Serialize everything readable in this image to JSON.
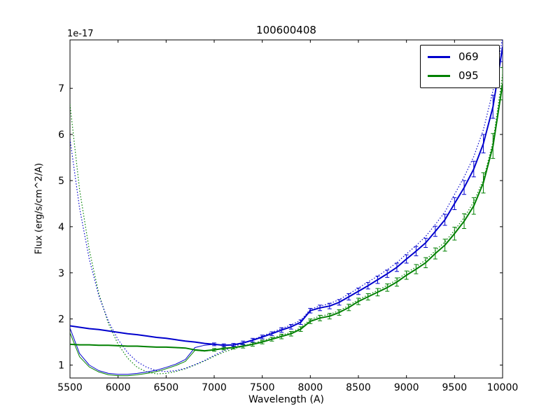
{
  "chart_data": {
    "type": "line",
    "title": "100600408",
    "xlabel": "Wavelength (A)",
    "ylabel": "Flux (erg/s/cm^2/A)",
    "offset_text": "1e-17",
    "xlim": [
      5500,
      10000
    ],
    "ylim": [
      0.72,
      8.05
    ],
    "xticks": [
      5500,
      6000,
      6500,
      7000,
      7500,
      8000,
      8500,
      9000,
      9500,
      10000
    ],
    "yticks": [
      1,
      2,
      3,
      4,
      5,
      6,
      7
    ],
    "grid": false,
    "legend_position": "upper right",
    "x": [
      5500,
      5600,
      5700,
      5800,
      5900,
      6000,
      6100,
      6200,
      6300,
      6400,
      6500,
      6600,
      6700,
      6800,
      6900,
      7000,
      7100,
      7200,
      7300,
      7400,
      7500,
      7600,
      7700,
      7800,
      7900,
      8000,
      8100,
      8200,
      8300,
      8400,
      8500,
      8600,
      8700,
      8800,
      8900,
      9000,
      9100,
      9200,
      9300,
      9400,
      9500,
      9600,
      9700,
      9800,
      9900,
      10000
    ],
    "series": [
      {
        "name": "095-model-dotted",
        "color": "#008000",
        "style": "dotted",
        "width": 1.2,
        "y": [
          6.65,
          4.8,
          3.5,
          2.55,
          1.9,
          1.45,
          1.15,
          0.95,
          0.85,
          0.81,
          0.82,
          0.86,
          0.92,
          1.0,
          1.09,
          1.19,
          1.28,
          1.35,
          1.41,
          1.47,
          1.53,
          1.59,
          1.65,
          1.71,
          1.81,
          1.99,
          2.06,
          2.1,
          2.18,
          2.29,
          2.42,
          2.52,
          2.62,
          2.73,
          2.85,
          3.0,
          3.13,
          3.28,
          3.48,
          3.67,
          3.92,
          4.2,
          4.54,
          5.02,
          5.85,
          7.3
        ]
      },
      {
        "name": "069-model-dotted",
        "color": "#0000cd",
        "style": "dotted",
        "width": 1.2,
        "y": [
          5.9,
          4.4,
          3.3,
          2.5,
          1.95,
          1.55,
          1.27,
          1.07,
          0.95,
          0.88,
          0.86,
          0.88,
          0.93,
          1.01,
          1.1,
          1.21,
          1.31,
          1.4,
          1.47,
          1.55,
          1.63,
          1.71,
          1.79,
          1.87,
          1.97,
          2.21,
          2.28,
          2.33,
          2.42,
          2.54,
          2.67,
          2.8,
          2.93,
          3.07,
          3.22,
          3.41,
          3.59,
          3.79,
          4.05,
          4.32,
          4.7,
          5.08,
          5.52,
          6.1,
          6.95,
          8.1
        ]
      },
      {
        "name": "095-spectrum-left",
        "color": "#008000",
        "style": "solid",
        "width": 1,
        "x": [
          5500,
          5600,
          5700,
          5800,
          5900,
          6000,
          6100,
          6200,
          6300,
          6400,
          6500,
          6600,
          6700,
          6800,
          6900,
          7000
        ],
        "y": [
          1.7,
          1.18,
          0.96,
          0.85,
          0.79,
          0.77,
          0.77,
          0.79,
          0.82,
          0.86,
          0.92,
          0.99,
          1.08,
          1.32,
          1.3,
          1.33
        ]
      },
      {
        "name": "069-spectrum-left",
        "color": "#0000cd",
        "style": "solid",
        "width": 1,
        "x": [
          5500,
          5600,
          5700,
          5800,
          5900,
          6000,
          6100,
          6200,
          6300,
          6400,
          6500,
          6600,
          6700,
          6800,
          6900,
          7000
        ],
        "y": [
          1.8,
          1.25,
          1.0,
          0.88,
          0.82,
          0.8,
          0.8,
          0.82,
          0.85,
          0.89,
          0.95,
          1.02,
          1.12,
          1.38,
          1.43,
          1.45
        ]
      },
      {
        "name": "095",
        "color": "#008000",
        "style": "solid",
        "width": 2,
        "y": [
          1.45,
          1.44,
          1.44,
          1.43,
          1.43,
          1.42,
          1.41,
          1.41,
          1.4,
          1.39,
          1.39,
          1.38,
          1.37,
          1.33,
          1.31,
          1.33,
          1.36,
          1.38,
          1.41,
          1.45,
          1.5,
          1.56,
          1.62,
          1.68,
          1.78,
          1.95,
          2.02,
          2.06,
          2.14,
          2.25,
          2.38,
          2.48,
          2.58,
          2.68,
          2.8,
          2.95,
          3.08,
          3.22,
          3.42,
          3.6,
          3.85,
          4.12,
          4.45,
          4.95,
          5.75,
          7.1
        ],
        "yerr": [
          0,
          0,
          0,
          0,
          0,
          0,
          0,
          0,
          0,
          0,
          0,
          0,
          0,
          0,
          0,
          0.03,
          0.03,
          0.03,
          0.04,
          0.04,
          0.04,
          0.04,
          0.05,
          0.05,
          0.05,
          0.05,
          0.06,
          0.06,
          0.06,
          0.07,
          0.07,
          0.07,
          0.08,
          0.08,
          0.09,
          0.09,
          0.1,
          0.11,
          0.12,
          0.13,
          0.14,
          0.16,
          0.18,
          0.22,
          0.27,
          0.35
        ]
      },
      {
        "name": "069",
        "color": "#0000cd",
        "style": "solid",
        "width": 2,
        "y": [
          1.85,
          1.82,
          1.79,
          1.77,
          1.74,
          1.71,
          1.68,
          1.66,
          1.63,
          1.6,
          1.58,
          1.55,
          1.52,
          1.5,
          1.47,
          1.45,
          1.43,
          1.44,
          1.48,
          1.54,
          1.61,
          1.68,
          1.76,
          1.83,
          1.93,
          2.18,
          2.24,
          2.28,
          2.36,
          2.48,
          2.6,
          2.72,
          2.85,
          2.98,
          3.12,
          3.3,
          3.47,
          3.65,
          3.9,
          4.15,
          4.5,
          4.85,
          5.25,
          5.8,
          6.6,
          7.9
        ],
        "yerr": [
          0,
          0,
          0,
          0,
          0,
          0,
          0,
          0,
          0,
          0,
          0,
          0,
          0,
          0,
          0,
          0.03,
          0.03,
          0.03,
          0.04,
          0.04,
          0.04,
          0.04,
          0.05,
          0.05,
          0.05,
          0.05,
          0.06,
          0.06,
          0.06,
          0.07,
          0.07,
          0.07,
          0.08,
          0.08,
          0.09,
          0.09,
          0.1,
          0.1,
          0.11,
          0.12,
          0.13,
          0.15,
          0.17,
          0.2,
          0.25,
          0.32
        ]
      }
    ],
    "legend": {
      "entries": [
        {
          "label": "069",
          "color": "#0000cd"
        },
        {
          "label": "095",
          "color": "#008000"
        }
      ]
    }
  }
}
